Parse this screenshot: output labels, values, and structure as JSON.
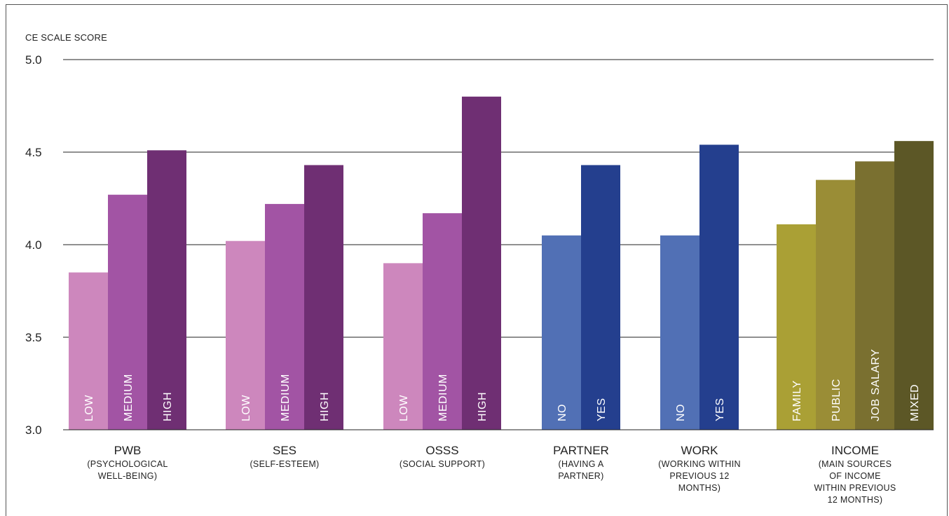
{
  "chart_data": {
    "type": "bar",
    "ylabel": "CE SCALE SCORE",
    "ylim": [
      3.0,
      5.0
    ],
    "yticks": [
      "3.0",
      "3.5",
      "4.0",
      "4.5",
      "5.0"
    ],
    "grid": true,
    "groups": [
      {
        "title": "PWB",
        "subtitle": [
          "(PSYCHOLOGICAL",
          "WELL-BEING)"
        ],
        "bars": [
          {
            "label": "LOW",
            "value": 3.85,
            "color": "#cd87bd"
          },
          {
            "label": "MEDIUM",
            "value": 4.27,
            "color": "#a254a4"
          },
          {
            "label": "HIGH",
            "value": 4.51,
            "color": "#6f2f73"
          }
        ]
      },
      {
        "title": "SES",
        "subtitle": [
          "(SELF-ESTEEM)"
        ],
        "bars": [
          {
            "label": "LOW",
            "value": 4.02,
            "color": "#cd87bd"
          },
          {
            "label": "MEDIUM",
            "value": 4.22,
            "color": "#a254a4"
          },
          {
            "label": "HIGH",
            "value": 4.43,
            "color": "#6f2f73"
          }
        ]
      },
      {
        "title": "OSSS",
        "subtitle": [
          "(SOCIAL SUPPORT)"
        ],
        "bars": [
          {
            "label": "LOW",
            "value": 3.9,
            "color": "#cd87bd"
          },
          {
            "label": "MEDIUM",
            "value": 4.17,
            "color": "#a254a4"
          },
          {
            "label": "HIGH",
            "value": 4.8,
            "color": "#6f2f73"
          }
        ]
      },
      {
        "title": "PARTNER",
        "subtitle": [
          "(HAVING A",
          "PARTNER)"
        ],
        "bars": [
          {
            "label": "NO",
            "value": 4.05,
            "color": "#5170b5"
          },
          {
            "label": "YES",
            "value": 4.43,
            "color": "#243f8e"
          }
        ]
      },
      {
        "title": "WORK",
        "subtitle": [
          "(WORKING WITHIN",
          "PREVIOUS 12",
          "MONTHS)"
        ],
        "bars": [
          {
            "label": "NO",
            "value": 4.05,
            "color": "#5170b5"
          },
          {
            "label": "YES",
            "value": 4.54,
            "color": "#243f8e"
          }
        ]
      },
      {
        "title": "INCOME",
        "subtitle": [
          "(MAIN SOURCES",
          "OF INCOME",
          "WITHIN PREVIOUS",
          "12 MONTHS)"
        ],
        "bars": [
          {
            "label": "FAMILY",
            "value": 4.11,
            "color": "#aaa035"
          },
          {
            "label": "PUBLIC",
            "value": 4.35,
            "color": "#9a8d36"
          },
          {
            "label": "JOB SALARY",
            "value": 4.45,
            "color": "#7a7030"
          },
          {
            "label": "MIXED",
            "value": 4.56,
            "color": "#5c5726"
          }
        ]
      }
    ]
  }
}
